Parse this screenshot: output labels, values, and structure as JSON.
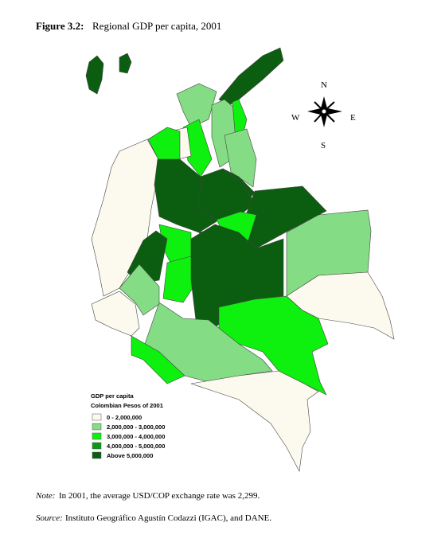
{
  "figure": {
    "label": "Figure 3.2:",
    "title": "Regional GDP per capita, 2001"
  },
  "compass": {
    "north": "N",
    "west": "W",
    "east": "E",
    "south": "S"
  },
  "legend": {
    "title": "GDP per capita",
    "subtitle": "Colombian Pesos of 2001",
    "items": [
      {
        "label": "0 - 2,000,000",
        "color": "#fcfaee"
      },
      {
        "label": "2,000,000 - 3,000,000",
        "color": "#84dc84"
      },
      {
        "label": "3,000,000 - 4,000,000",
        "color": "#0ef00e"
      },
      {
        "label": "4,000,000 - 5,000,000",
        "color": "#0a9a1a"
      },
      {
        "label": "Above 5,000,000",
        "color": "#0b5d10"
      }
    ]
  },
  "note": {
    "label": "Note:",
    "text": "In 2001, the average USD/COP exchange rate was 2,299."
  },
  "source": {
    "label": "Source:",
    "text": "Instituto Geográfico Agustín Codazzi (IGAC), and DANE."
  }
}
